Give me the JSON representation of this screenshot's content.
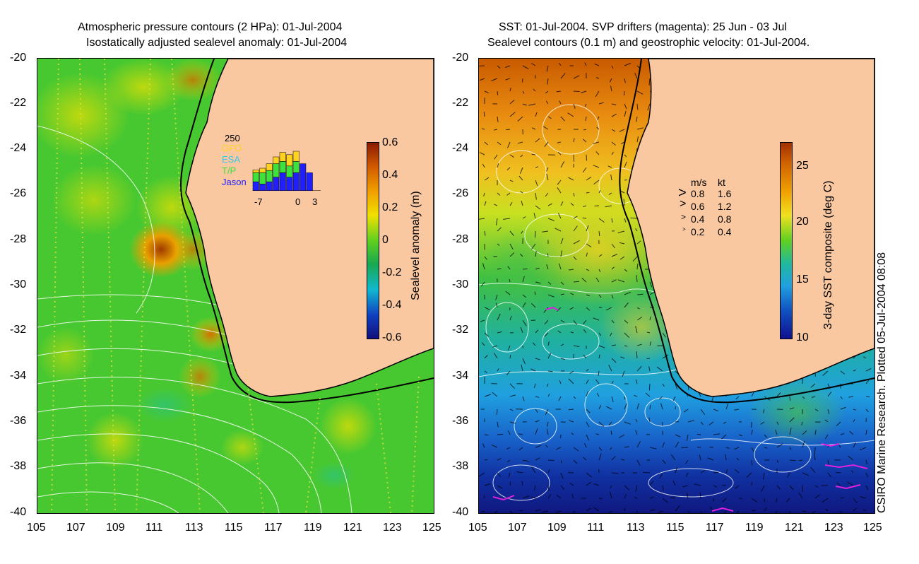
{
  "left_panel": {
    "title_line1": "Atmospheric pressure contours (2 HPa): 01-Jul-2004",
    "title_line2": "Isostatically adjusted sealevel anomaly: 01-Jul-2004",
    "colorbar": {
      "label": "Sealevel anomaly (m)",
      "ticks": [
        "0.6",
        "0.4",
        "0.2",
        "0",
        "-0.2",
        "-0.4",
        "-0.6"
      ]
    },
    "inset": {
      "ymax_label": "250",
      "legend": [
        {
          "name": "GFO",
          "color": "#ffd21f"
        },
        {
          "name": "ESA",
          "color": "#3cc8e6"
        },
        {
          "name": "T/P",
          "color": "#3ce13c"
        },
        {
          "name": "Jason",
          "color": "#2020ff"
        }
      ],
      "x_ticks": [
        "-7",
        "0",
        "3"
      ],
      "bars": [
        {
          "day": -7,
          "gfo": 12,
          "esa": 0,
          "tp": 40,
          "jason": 40
        },
        {
          "day": -6,
          "gfo": 20,
          "esa": 0,
          "tp": 50,
          "jason": 30
        },
        {
          "day": -5,
          "gfo": 30,
          "esa": 0,
          "tp": 50,
          "jason": 40
        },
        {
          "day": -4,
          "gfo": 30,
          "esa": 0,
          "tp": 60,
          "jason": 60
        },
        {
          "day": -3,
          "gfo": 40,
          "esa": 0,
          "tp": 50,
          "jason": 80
        },
        {
          "day": -2,
          "gfo": 50,
          "esa": 0,
          "tp": 50,
          "jason": 60
        },
        {
          "day": -1,
          "gfo": 45,
          "esa": 0,
          "tp": 50,
          "jason": 80
        },
        {
          "day": 0,
          "gfo": 0,
          "esa": 0,
          "tp": 0,
          "jason": 120
        },
        {
          "day": 1,
          "gfo": 0,
          "esa": 0,
          "tp": 0,
          "jason": 80
        }
      ]
    }
  },
  "right_panel": {
    "title_line1": "SST: 01-Jul-2004. SVP drifters (magenta): 25 Jun - 03 Jul",
    "title_line2": "Sealevel contours (0.1 m) and geostrophic velocity: 01-Jul-2004.",
    "colorbar": {
      "label": "3-day SST composite (deg C)",
      "ticks": [
        "25",
        "20",
        "15",
        "10"
      ]
    },
    "velocity_legend": {
      "header_ms": "m/s",
      "header_kt": "kt",
      "rows": [
        {
          "ms": "0.8",
          "kt": "1.6"
        },
        {
          "ms": "0.6",
          "kt": "1.2"
        },
        {
          "ms": "0.4",
          "kt": "0.8"
        },
        {
          "ms": "0.2",
          "kt": "0.4"
        }
      ]
    }
  },
  "axes": {
    "y_ticks": [
      "-20",
      "-22",
      "-24",
      "-26",
      "-28",
      "-30",
      "-32",
      "-34",
      "-36",
      "-38",
      "-40"
    ],
    "x_ticks": [
      "105",
      "107",
      "109",
      "111",
      "113",
      "115",
      "117",
      "119",
      "121",
      "123",
      "125"
    ]
  },
  "credit": "CSIRO Marine Research. Plotted 05-Jul-2004 08:08",
  "colors": {
    "land": "#f9c8a0",
    "coast": "#000000",
    "ssh_low": "#10107a",
    "ssh_zero": "#20b830",
    "ssh_high": "#8a1a00",
    "sst_cold": "#101090",
    "sst_warm": "#a03000"
  }
}
